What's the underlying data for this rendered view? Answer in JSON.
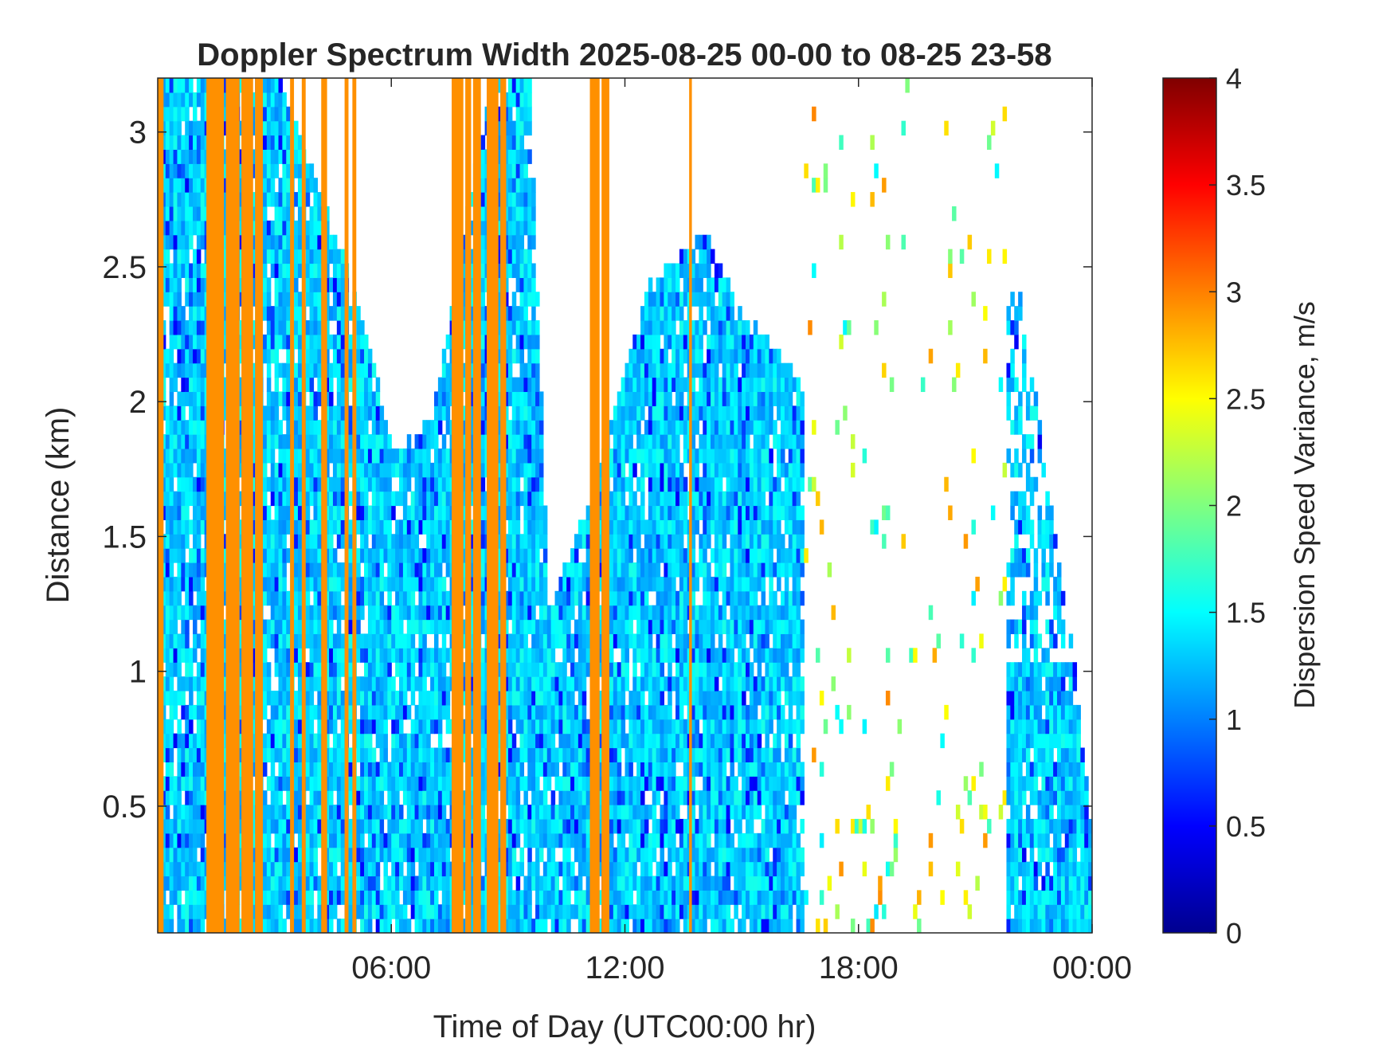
{
  "chart_data": {
    "type": "heatmap",
    "title": "Doppler Spectrum Width 2025-08-25 00-00 to 08-25 23-58",
    "xlabel": "Time of Day (UTC00:00 hr)",
    "ylabel": "Distance (km)",
    "x_unit": "hours",
    "xlim": [
      0,
      24
    ],
    "ylim": [
      0.03,
      3.2
    ],
    "xticks": [
      6,
      12,
      18,
      24
    ],
    "xtick_labels": [
      "06:00",
      "12:00",
      "18:00",
      "00:00"
    ],
    "yticks": [
      0.5,
      1,
      1.5,
      2,
      2.5,
      3
    ],
    "ytick_labels": [
      "0.5",
      "1",
      "1.5",
      "2",
      "2.5",
      "3"
    ],
    "colorbar": {
      "label": "Dispersion Speed Variance, m/s",
      "range": [
        0,
        4
      ],
      "ticks": [
        0,
        0.5,
        1,
        1.5,
        2,
        2.5,
        3,
        3.5,
        4
      ],
      "tick_labels": [
        "0",
        "0.5",
        "1",
        "1.5",
        "2",
        "2.5",
        "3",
        "3.5",
        "4"
      ],
      "colormap": "jet"
    },
    "saturated_value": 3.0,
    "saturated_color": "#ff9000",
    "saturated_bands_hours": [
      [
        0.0,
        0.15
      ],
      [
        1.25,
        1.7
      ],
      [
        1.75,
        2.1
      ],
      [
        2.15,
        2.45
      ],
      [
        2.5,
        2.7
      ],
      [
        3.4,
        3.5
      ],
      [
        3.7,
        3.8
      ],
      [
        4.2,
        4.35
      ],
      [
        4.8,
        4.9
      ],
      [
        5.0,
        5.1
      ],
      [
        7.55,
        7.85
      ],
      [
        7.9,
        8.05
      ],
      [
        8.1,
        8.3
      ],
      [
        8.45,
        8.75
      ],
      [
        8.8,
        8.95
      ],
      [
        11.1,
        11.35
      ],
      [
        11.4,
        11.6
      ],
      [
        13.65,
        13.72
      ]
    ],
    "echo_top_profile_km": [
      {
        "t": 0.0,
        "top": 3.2
      },
      {
        "t": 1.0,
        "top": 3.2
      },
      {
        "t": 3.0,
        "top": 3.2
      },
      {
        "t": 5.0,
        "top": 2.4
      },
      {
        "t": 6.0,
        "top": 1.8
      },
      {
        "t": 7.0,
        "top": 1.9
      },
      {
        "t": 8.5,
        "top": 3.2
      },
      {
        "t": 9.5,
        "top": 3.2
      },
      {
        "t": 10.0,
        "top": 1.2
      },
      {
        "t": 11.0,
        "top": 1.6
      },
      {
        "t": 12.5,
        "top": 2.4
      },
      {
        "t": 14.0,
        "top": 2.6
      },
      {
        "t": 15.0,
        "top": 2.3
      },
      {
        "t": 16.5,
        "top": 2.05
      },
      {
        "t": 17.3,
        "top": 2.0
      },
      {
        "t": 18.0,
        "top": 0.0
      },
      {
        "t": 22.0,
        "top": 2.5
      },
      {
        "t": 23.5,
        "top": 1.0
      },
      {
        "t": 24.0,
        "top": 0.3
      }
    ]
  }
}
